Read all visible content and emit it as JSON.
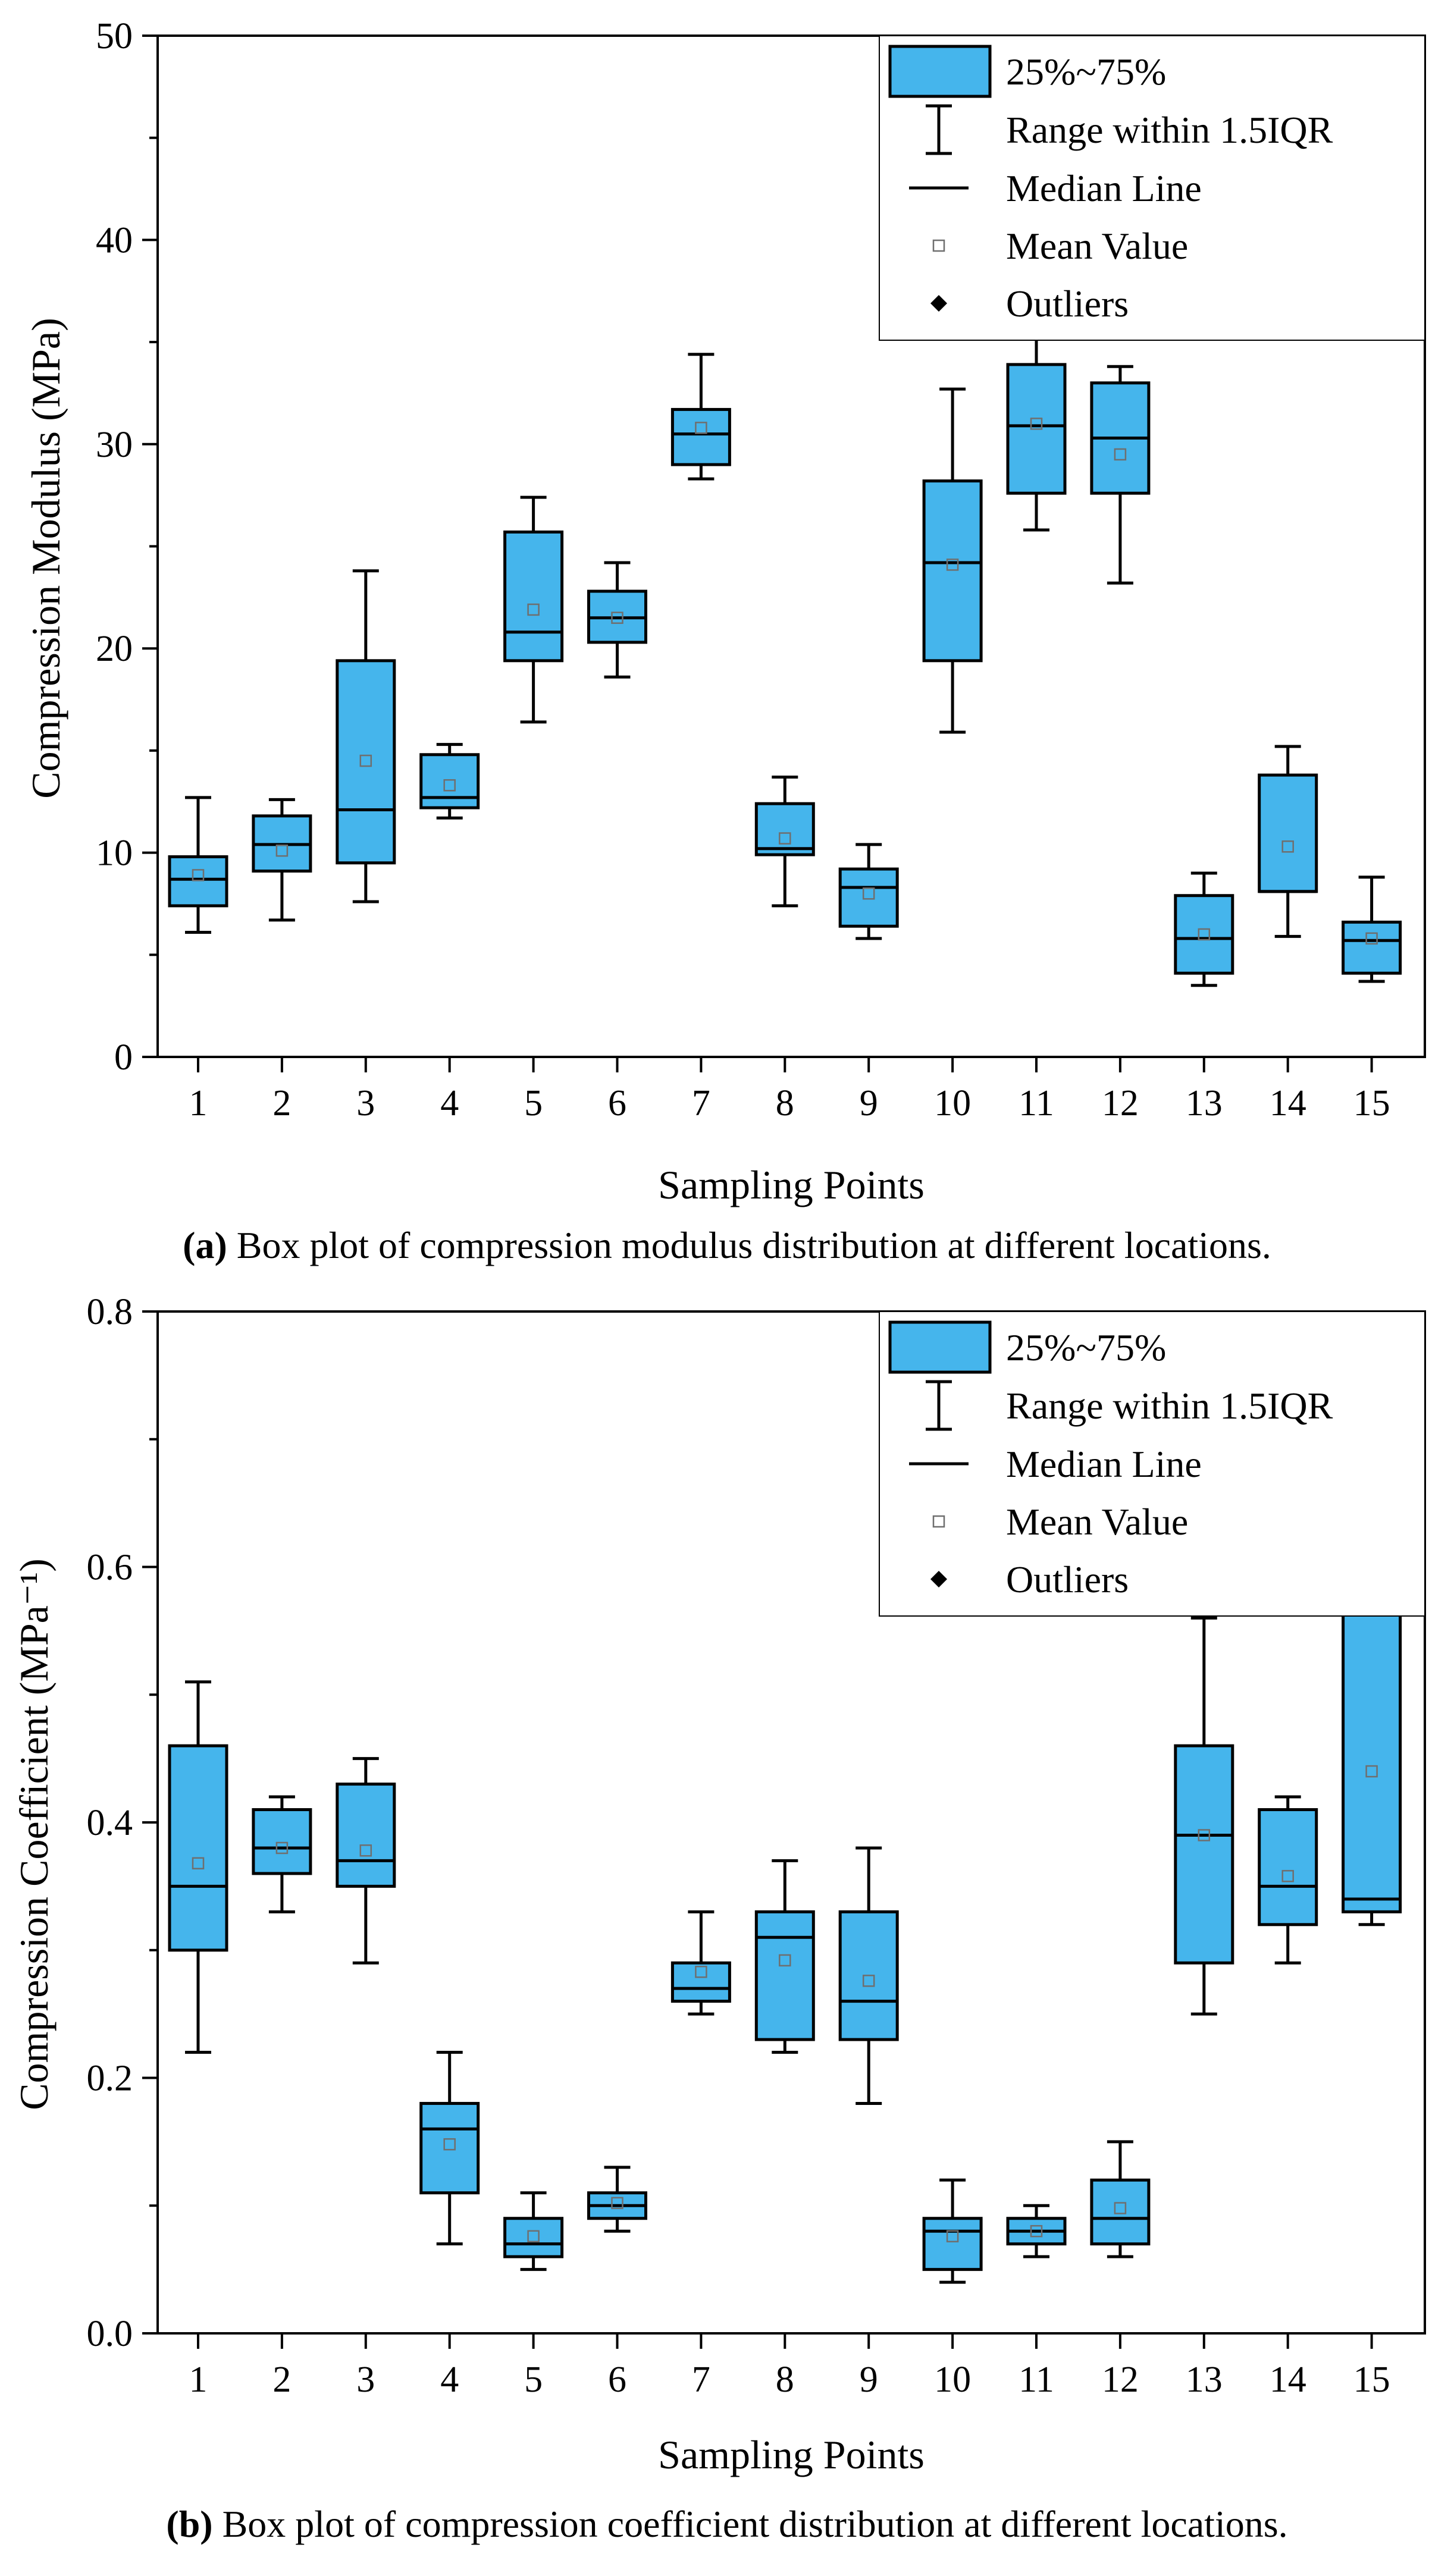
{
  "chart_data": [
    {
      "type": "box",
      "xlabel": "Sampling Points",
      "ylabel": "Compression Modulus (MPa)",
      "ylim": [
        0,
        50
      ],
      "yticks": [
        "0",
        "10",
        "20",
        "30",
        "40",
        "50"
      ],
      "categories": [
        "1",
        "2",
        "3",
        "4",
        "5",
        "6",
        "7",
        "8",
        "9",
        "10",
        "11",
        "12",
        "13",
        "14",
        "15"
      ],
      "caption": {
        "label": "(a)",
        "text": " Box plot of compression modulus distribution at different locations."
      },
      "legend": {
        "position": "top-right",
        "items": [
          "25%~75%",
          "Range within 1.5IQR",
          "Median Line",
          "Mean Value",
          "Outliers"
        ]
      },
      "box_color": "#45b5ec",
      "boxes": [
        {
          "min": 6.1,
          "q1": 7.4,
          "median": 8.7,
          "q3": 9.8,
          "max": 12.7,
          "mean": 8.9
        },
        {
          "min": 6.7,
          "q1": 9.1,
          "median": 10.4,
          "q3": 11.8,
          "max": 12.6,
          "mean": 10.1
        },
        {
          "min": 7.6,
          "q1": 9.5,
          "median": 12.1,
          "q3": 19.4,
          "max": 23.8,
          "mean": 14.5
        },
        {
          "min": 11.7,
          "q1": 12.2,
          "median": 12.7,
          "q3": 14.8,
          "max": 15.3,
          "mean": 13.3
        },
        {
          "min": 16.4,
          "q1": 19.4,
          "median": 20.8,
          "q3": 25.7,
          "max": 27.4,
          "mean": 21.9
        },
        {
          "min": 18.6,
          "q1": 20.3,
          "median": 21.5,
          "q3": 22.8,
          "max": 24.2,
          "mean": 21.5
        },
        {
          "min": 28.3,
          "q1": 29.0,
          "median": 30.5,
          "q3": 31.7,
          "max": 34.4,
          "mean": 30.8
        },
        {
          "min": 7.4,
          "q1": 9.9,
          "median": 10.2,
          "q3": 12.4,
          "max": 13.7,
          "mean": 10.7
        },
        {
          "min": 5.8,
          "q1": 6.4,
          "median": 8.3,
          "q3": 9.2,
          "max": 10.4,
          "mean": 8.0
        },
        {
          "min": 15.9,
          "q1": 19.4,
          "median": 24.2,
          "q3": 28.2,
          "max": 32.7,
          "mean": 24.1
        },
        {
          "min": 25.8,
          "q1": 27.6,
          "median": 30.9,
          "q3": 33.9,
          "max": 37.0,
          "mean": 31.0
        },
        {
          "min": 23.2,
          "q1": 27.6,
          "median": 30.3,
          "q3": 33.0,
          "max": 33.8,
          "mean": 29.5
        },
        {
          "min": 3.5,
          "q1": 4.1,
          "median": 5.8,
          "q3": 7.9,
          "max": 9.0,
          "mean": 6.0
        },
        {
          "min": 5.9,
          "q1": 8.1,
          "median": 8.1,
          "q3": 13.8,
          "max": 15.2,
          "mean": 10.3
        },
        {
          "min": 3.7,
          "q1": 4.1,
          "median": 5.7,
          "q3": 6.6,
          "max": 8.8,
          "mean": 5.8
        }
      ]
    },
    {
      "type": "box",
      "xlabel": "Sampling Points",
      "ylabel": "Compression Coefficient (MPa⁻¹)",
      "ylim": [
        0.0,
        0.8
      ],
      "yticks": [
        "0.0",
        "0.2",
        "0.4",
        "0.6",
        "0.8"
      ],
      "categories": [
        "1",
        "2",
        "3",
        "4",
        "5",
        "6",
        "7",
        "8",
        "9",
        "10",
        "11",
        "12",
        "13",
        "14",
        "15"
      ],
      "caption": {
        "label": "(b)",
        "text": " Box plot of compression coefficient distribution at different locations."
      },
      "legend": {
        "position": "top-right",
        "items": [
          "25%~75%",
          "Range within 1.5IQR",
          "Median Line",
          "Mean Value",
          "Outliers"
        ]
      },
      "box_color": "#45b5ec",
      "boxes": [
        {
          "min": 0.22,
          "q1": 0.3,
          "median": 0.35,
          "q3": 0.46,
          "max": 0.51,
          "mean": 0.368
        },
        {
          "min": 0.33,
          "q1": 0.36,
          "median": 0.38,
          "q3": 0.41,
          "max": 0.42,
          "mean": 0.38
        },
        {
          "min": 0.29,
          "q1": 0.35,
          "median": 0.37,
          "q3": 0.43,
          "max": 0.45,
          "mean": 0.378
        },
        {
          "min": 0.07,
          "q1": 0.11,
          "median": 0.16,
          "q3": 0.18,
          "max": 0.22,
          "mean": 0.148
        },
        {
          "min": 0.05,
          "q1": 0.06,
          "median": 0.07,
          "q3": 0.09,
          "max": 0.11,
          "mean": 0.076
        },
        {
          "min": 0.08,
          "q1": 0.09,
          "median": 0.1,
          "q3": 0.11,
          "max": 0.13,
          "mean": 0.102
        },
        {
          "min": 0.25,
          "q1": 0.26,
          "median": 0.27,
          "q3": 0.29,
          "max": 0.33,
          "mean": 0.283
        },
        {
          "min": 0.22,
          "q1": 0.23,
          "median": 0.31,
          "q3": 0.33,
          "max": 0.37,
          "mean": 0.292
        },
        {
          "min": 0.18,
          "q1": 0.23,
          "median": 0.26,
          "q3": 0.33,
          "max": 0.38,
          "mean": 0.276
        },
        {
          "min": 0.04,
          "q1": 0.05,
          "median": 0.08,
          "q3": 0.09,
          "max": 0.12,
          "mean": 0.076
        },
        {
          "min": 0.06,
          "q1": 0.07,
          "median": 0.08,
          "q3": 0.09,
          "max": 0.1,
          "mean": 0.08
        },
        {
          "min": 0.06,
          "q1": 0.07,
          "median": 0.09,
          "q3": 0.12,
          "max": 0.15,
          "mean": 0.098
        },
        {
          "min": 0.25,
          "q1": 0.29,
          "median": 0.39,
          "q3": 0.46,
          "max": 0.56,
          "mean": 0.39
        },
        {
          "min": 0.29,
          "q1": 0.32,
          "median": 0.35,
          "q3": 0.41,
          "max": 0.42,
          "mean": 0.358
        },
        {
          "min": 0.32,
          "q1": 0.33,
          "median": 0.34,
          "q3": 0.58,
          "max": 0.63,
          "mean": 0.44
        }
      ]
    }
  ]
}
